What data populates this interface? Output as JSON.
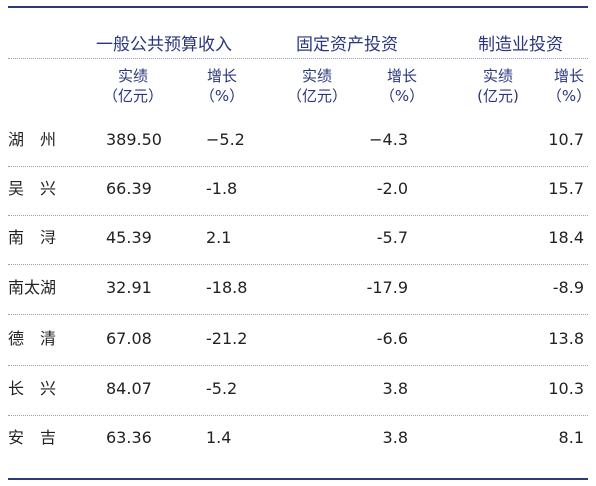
{
  "headers": {
    "groups": [
      "一般公共预算收入",
      "固定资产投资",
      "制造业投资"
    ],
    "sub": {
      "actual": "实绩",
      "actual_unit": "（亿元）",
      "actual_unit_tight": "(亿元)",
      "growth": "增长",
      "growth_unit": "（%）"
    }
  },
  "rows": [
    {
      "name": "湖　州",
      "revenue": "389.50",
      "revenue_growth": "−5.2",
      "fixed_growth": "−4.3",
      "mfg_growth": "10.7"
    },
    {
      "name": "吴　兴",
      "revenue": "66.39",
      "revenue_growth": "-1.8",
      "fixed_growth": "-2.0",
      "mfg_growth": "15.7"
    },
    {
      "name": "南　浔",
      "revenue": "45.39",
      "revenue_growth": "2.1",
      "fixed_growth": "-5.7",
      "mfg_growth": "18.4"
    },
    {
      "name": "南太湖",
      "revenue": "32.91",
      "revenue_growth": "-18.8",
      "fixed_growth": "-17.9",
      "mfg_growth": "-8.9"
    },
    {
      "name": "德　清",
      "revenue": "67.08",
      "revenue_growth": "-21.2",
      "fixed_growth": "-6.6",
      "mfg_growth": "13.8"
    },
    {
      "name": "长　兴",
      "revenue": "84.07",
      "revenue_growth": "-5.2",
      "fixed_growth": "3.8",
      "mfg_growth": "10.3"
    },
    {
      "name": "安　吉",
      "revenue": "63.36",
      "revenue_growth": "1.4",
      "fixed_growth": "3.8",
      "mfg_growth": "8.1"
    }
  ],
  "colors": {
    "rule": "#2b3a7a",
    "header_text": "#2a3680"
  }
}
